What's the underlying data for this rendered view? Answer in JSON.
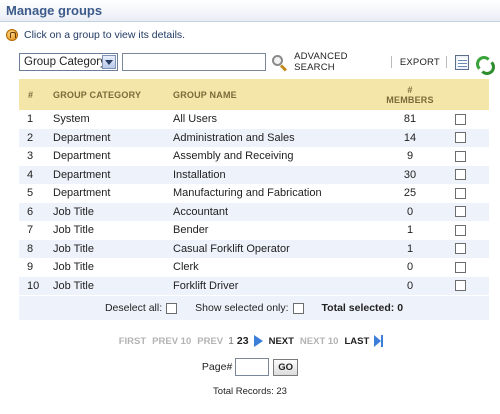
{
  "page": {
    "title": "Manage groups",
    "hint": "Click on a group to view its details."
  },
  "toolbar": {
    "filter_select_value": "Group Category",
    "search_value": "",
    "advanced_search_label": "ADVANCED SEARCH",
    "export_label": "EXPORT"
  },
  "table": {
    "headers": {
      "num": "#",
      "category": "GROUP CATEGORY",
      "name": "GROUP NAME",
      "members_line1": "#",
      "members_line2": "MEMBERS"
    },
    "rows": [
      {
        "num": "1",
        "category": "System",
        "name": "All Users",
        "members": "81",
        "checked": false
      },
      {
        "num": "2",
        "category": "Department",
        "name": "Administration and Sales",
        "members": "14",
        "checked": false
      },
      {
        "num": "3",
        "category": "Department",
        "name": "Assembly and Receiving",
        "members": "9",
        "checked": false
      },
      {
        "num": "4",
        "category": "Department",
        "name": "Installation",
        "members": "30",
        "checked": false
      },
      {
        "num": "5",
        "category": "Department",
        "name": "Manufacturing and Fabrication",
        "members": "25",
        "checked": false
      },
      {
        "num": "6",
        "category": "Job Title",
        "name": "Accountant",
        "members": "0",
        "checked": false
      },
      {
        "num": "7",
        "category": "Job Title",
        "name": "Bender",
        "members": "1",
        "checked": false
      },
      {
        "num": "8",
        "category": "Job Title",
        "name": "Casual Forklift Operator",
        "members": "1",
        "checked": false
      },
      {
        "num": "9",
        "category": "Job Title",
        "name": "Clerk",
        "members": "0",
        "checked": false
      },
      {
        "num": "10",
        "category": "Job Title",
        "name": "Forklift Driver",
        "members": "0",
        "checked": false
      }
    ]
  },
  "footer": {
    "deselect_all_label": "Deselect all:",
    "show_selected_label": "Show selected only:",
    "total_selected_label": "Total selected: 0"
  },
  "pager": {
    "first": "FIRST",
    "prev10": "PREV 10",
    "prev": "PREV",
    "page_current": "1",
    "page_2": "2",
    "page_3": "3",
    "next": "NEXT",
    "next10": "NEXT 10",
    "last": "LAST"
  },
  "goto": {
    "label": "Page#",
    "value": "",
    "go_label": "GO"
  },
  "total_records": "Total Records: 23",
  "colors": {
    "header_bg": "#f4e5a8",
    "header_text": "#7b6a3a",
    "alt_row_bg": "#eef3fb",
    "title_color": "#3c5a8a",
    "link_blue": "#3b7fd9"
  }
}
